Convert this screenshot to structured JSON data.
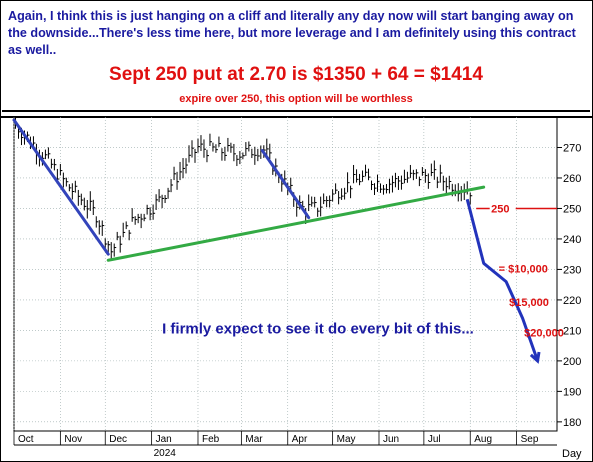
{
  "header": {
    "note": "Again, I think this is just hanging on a cliff and literally any day now will start banging away on the downside...There's less time here, but more leverage and I am definitely using this contract as well..",
    "headline": "Sept 250 put at 2.70 is $1350 + 64 = $1414",
    "subline": "expire over 250, this option will be worthless"
  },
  "chart_data": {
    "type": "line",
    "x_axis": {
      "months": [
        "Oct",
        "Nov",
        "Dec",
        "Jan",
        "Feb",
        "Mar",
        "Apr",
        "May",
        "Jun",
        "Jul",
        "Aug",
        "Sep"
      ],
      "year_label": "2024",
      "unit_label": "Day"
    },
    "y_axis": {
      "ticks": [
        180,
        190,
        200,
        210,
        220,
        230,
        240,
        250,
        260,
        270
      ],
      "ylim": [
        177,
        280
      ]
    },
    "price_series": {
      "name": "",
      "dates": [
        "2023-10-01",
        "2023-10-20",
        "2023-11-05",
        "2023-11-25",
        "2023-12-05",
        "2023-12-20",
        "2024-01-05",
        "2024-01-20",
        "2024-02-01",
        "2024-02-15",
        "2024-03-01",
        "2024-03-15",
        "2024-03-25",
        "2024-04-10",
        "2024-04-20",
        "2024-05-05",
        "2024-05-20",
        "2024-06-05",
        "2024-06-20",
        "2024-07-05",
        "2024-07-20",
        "2024-08-01"
      ],
      "close": [
        278,
        268,
        258,
        248,
        236,
        246,
        252,
        262,
        270,
        269,
        268,
        270,
        262,
        250,
        250,
        256,
        260,
        258,
        260,
        261,
        258,
        256
      ]
    },
    "trendlines": [
      {
        "label": "",
        "color": "#3344bb",
        "points": [
          [
            "2023-10-01",
            279
          ],
          [
            "2023-12-03",
            235
          ]
        ]
      },
      {
        "label": "",
        "color": "#33aa44",
        "points": [
          [
            "2023-12-03",
            233
          ],
          [
            "2024-08-10",
            257
          ]
        ]
      },
      {
        "label": "",
        "color": "#3344bb",
        "points": [
          [
            "2024-03-15",
            269
          ],
          [
            "2024-04-15",
            247
          ]
        ]
      }
    ],
    "projection": {
      "color": "#2233bb",
      "points": [
        [
          "2024-07-30",
          253
        ],
        [
          "2024-08-10",
          232
        ],
        [
          "2024-08-25",
          226
        ],
        [
          "2024-09-05",
          214
        ],
        [
          "2024-09-15",
          200
        ]
      ]
    },
    "strike_line": {
      "value": 250,
      "label": "250",
      "color": "#dd1111"
    },
    "annotations": [
      {
        "text": "= $10,000",
        "color": "#dd1111",
        "date": "2024-08-20",
        "y": 229
      },
      {
        "text": "$15,000",
        "color": "#dd1111",
        "date": "2024-08-27",
        "y": 218
      },
      {
        "text": "$20,000",
        "color": "#dd1111",
        "date": "2024-09-06",
        "y": 208
      },
      {
        "text": "I firmly expect to see it do every bit of this...",
        "color": "#1a1aa0",
        "date": "2024-01-08",
        "y": 209
      }
    ]
  }
}
